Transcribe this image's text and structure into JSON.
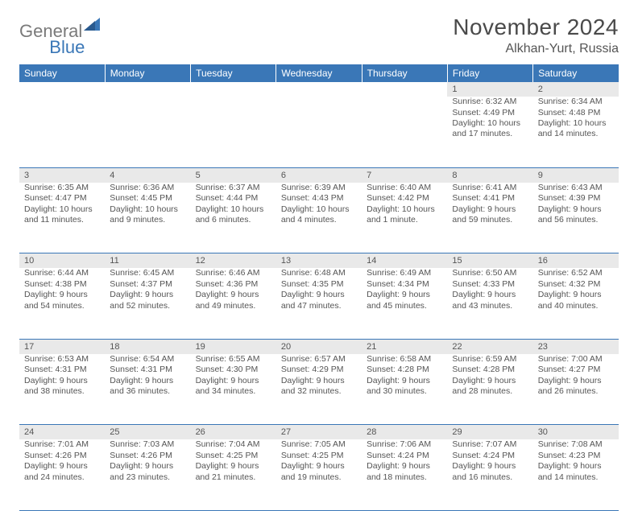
{
  "brand": {
    "part1": "General",
    "part2": "Blue"
  },
  "title": "November 2024",
  "location": "Alkhan-Yurt, Russia",
  "colors": {
    "header_bg": "#3a77b7",
    "header_text": "#ffffff",
    "daynum_bg": "#e9e9e9",
    "border": "#3a77b7",
    "body_text": "#555555",
    "page_bg": "#ffffff",
    "logo_gray": "#7a7a7a",
    "logo_blue": "#3a77b7"
  },
  "day_headers": [
    "Sunday",
    "Monday",
    "Tuesday",
    "Wednesday",
    "Thursday",
    "Friday",
    "Saturday"
  ],
  "weeks": [
    {
      "nums": [
        "",
        "",
        "",
        "",
        "",
        "1",
        "2"
      ],
      "cells": [
        null,
        null,
        null,
        null,
        null,
        {
          "sunrise": "Sunrise: 6:32 AM",
          "sunset": "Sunset: 4:49 PM",
          "daylight": "Daylight: 10 hours and 17 minutes."
        },
        {
          "sunrise": "Sunrise: 6:34 AM",
          "sunset": "Sunset: 4:48 PM",
          "daylight": "Daylight: 10 hours and 14 minutes."
        }
      ]
    },
    {
      "nums": [
        "3",
        "4",
        "5",
        "6",
        "7",
        "8",
        "9"
      ],
      "cells": [
        {
          "sunrise": "Sunrise: 6:35 AM",
          "sunset": "Sunset: 4:47 PM",
          "daylight": "Daylight: 10 hours and 11 minutes."
        },
        {
          "sunrise": "Sunrise: 6:36 AM",
          "sunset": "Sunset: 4:45 PM",
          "daylight": "Daylight: 10 hours and 9 minutes."
        },
        {
          "sunrise": "Sunrise: 6:37 AM",
          "sunset": "Sunset: 4:44 PM",
          "daylight": "Daylight: 10 hours and 6 minutes."
        },
        {
          "sunrise": "Sunrise: 6:39 AM",
          "sunset": "Sunset: 4:43 PM",
          "daylight": "Daylight: 10 hours and 4 minutes."
        },
        {
          "sunrise": "Sunrise: 6:40 AM",
          "sunset": "Sunset: 4:42 PM",
          "daylight": "Daylight: 10 hours and 1 minute."
        },
        {
          "sunrise": "Sunrise: 6:41 AM",
          "sunset": "Sunset: 4:41 PM",
          "daylight": "Daylight: 9 hours and 59 minutes."
        },
        {
          "sunrise": "Sunrise: 6:43 AM",
          "sunset": "Sunset: 4:39 PM",
          "daylight": "Daylight: 9 hours and 56 minutes."
        }
      ]
    },
    {
      "nums": [
        "10",
        "11",
        "12",
        "13",
        "14",
        "15",
        "16"
      ],
      "cells": [
        {
          "sunrise": "Sunrise: 6:44 AM",
          "sunset": "Sunset: 4:38 PM",
          "daylight": "Daylight: 9 hours and 54 minutes."
        },
        {
          "sunrise": "Sunrise: 6:45 AM",
          "sunset": "Sunset: 4:37 PM",
          "daylight": "Daylight: 9 hours and 52 minutes."
        },
        {
          "sunrise": "Sunrise: 6:46 AM",
          "sunset": "Sunset: 4:36 PM",
          "daylight": "Daylight: 9 hours and 49 minutes."
        },
        {
          "sunrise": "Sunrise: 6:48 AM",
          "sunset": "Sunset: 4:35 PM",
          "daylight": "Daylight: 9 hours and 47 minutes."
        },
        {
          "sunrise": "Sunrise: 6:49 AM",
          "sunset": "Sunset: 4:34 PM",
          "daylight": "Daylight: 9 hours and 45 minutes."
        },
        {
          "sunrise": "Sunrise: 6:50 AM",
          "sunset": "Sunset: 4:33 PM",
          "daylight": "Daylight: 9 hours and 43 minutes."
        },
        {
          "sunrise": "Sunrise: 6:52 AM",
          "sunset": "Sunset: 4:32 PM",
          "daylight": "Daylight: 9 hours and 40 minutes."
        }
      ]
    },
    {
      "nums": [
        "17",
        "18",
        "19",
        "20",
        "21",
        "22",
        "23"
      ],
      "cells": [
        {
          "sunrise": "Sunrise: 6:53 AM",
          "sunset": "Sunset: 4:31 PM",
          "daylight": "Daylight: 9 hours and 38 minutes."
        },
        {
          "sunrise": "Sunrise: 6:54 AM",
          "sunset": "Sunset: 4:31 PM",
          "daylight": "Daylight: 9 hours and 36 minutes."
        },
        {
          "sunrise": "Sunrise: 6:55 AM",
          "sunset": "Sunset: 4:30 PM",
          "daylight": "Daylight: 9 hours and 34 minutes."
        },
        {
          "sunrise": "Sunrise: 6:57 AM",
          "sunset": "Sunset: 4:29 PM",
          "daylight": "Daylight: 9 hours and 32 minutes."
        },
        {
          "sunrise": "Sunrise: 6:58 AM",
          "sunset": "Sunset: 4:28 PM",
          "daylight": "Daylight: 9 hours and 30 minutes."
        },
        {
          "sunrise": "Sunrise: 6:59 AM",
          "sunset": "Sunset: 4:28 PM",
          "daylight": "Daylight: 9 hours and 28 minutes."
        },
        {
          "sunrise": "Sunrise: 7:00 AM",
          "sunset": "Sunset: 4:27 PM",
          "daylight": "Daylight: 9 hours and 26 minutes."
        }
      ]
    },
    {
      "nums": [
        "24",
        "25",
        "26",
        "27",
        "28",
        "29",
        "30"
      ],
      "cells": [
        {
          "sunrise": "Sunrise: 7:01 AM",
          "sunset": "Sunset: 4:26 PM",
          "daylight": "Daylight: 9 hours and 24 minutes."
        },
        {
          "sunrise": "Sunrise: 7:03 AM",
          "sunset": "Sunset: 4:26 PM",
          "daylight": "Daylight: 9 hours and 23 minutes."
        },
        {
          "sunrise": "Sunrise: 7:04 AM",
          "sunset": "Sunset: 4:25 PM",
          "daylight": "Daylight: 9 hours and 21 minutes."
        },
        {
          "sunrise": "Sunrise: 7:05 AM",
          "sunset": "Sunset: 4:25 PM",
          "daylight": "Daylight: 9 hours and 19 minutes."
        },
        {
          "sunrise": "Sunrise: 7:06 AM",
          "sunset": "Sunset: 4:24 PM",
          "daylight": "Daylight: 9 hours and 18 minutes."
        },
        {
          "sunrise": "Sunrise: 7:07 AM",
          "sunset": "Sunset: 4:24 PM",
          "daylight": "Daylight: 9 hours and 16 minutes."
        },
        {
          "sunrise": "Sunrise: 7:08 AM",
          "sunset": "Sunset: 4:23 PM",
          "daylight": "Daylight: 9 hours and 14 minutes."
        }
      ]
    }
  ]
}
